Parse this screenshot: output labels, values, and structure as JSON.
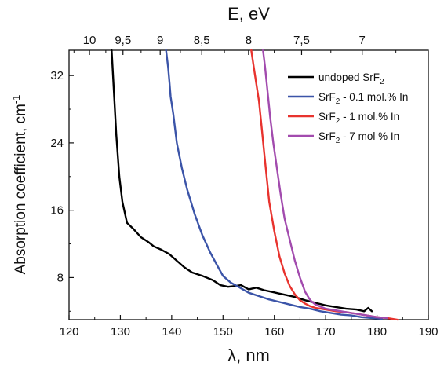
{
  "chart_data": {
    "type": "line",
    "xlabel": "λ, nm",
    "ylabel_main": "Absorption coefficient, cm",
    "ylabel_sup": "-1",
    "top_axis_label": "E, eV",
    "xlim": [
      120,
      190
    ],
    "ylim": [
      3,
      35
    ],
    "x_ticks": [
      120,
      130,
      140,
      150,
      160,
      170,
      180,
      190
    ],
    "y_ticks": [
      8,
      16,
      24,
      32
    ],
    "top_ticks": [
      {
        "label": "10",
        "ev": 10
      },
      {
        "label": "9,5",
        "ev": 9.5
      },
      {
        "label": "9",
        "ev": 9
      },
      {
        "label": "8,5",
        "ev": 8.5
      },
      {
        "label": "8",
        "ev": 8
      },
      {
        "label": "7,5",
        "ev": 7.5
      },
      {
        "label": "7",
        "ev": 7
      }
    ],
    "legend_position": "top-right",
    "series": [
      {
        "name": {
          "pre": "undoped SrF",
          "sub": "2",
          "post": ""
        },
        "color": "#000000",
        "x": [
          128.3,
          129.2,
          129.8,
          130.4,
          131.3,
          132.5,
          134,
          135.5,
          136.5,
          138,
          139.5,
          141,
          142.5,
          144,
          146,
          148,
          149.5,
          151,
          152.5,
          153.5,
          155,
          156.5,
          158,
          159.5,
          161,
          162.5,
          164,
          166,
          168,
          170,
          172,
          174,
          176,
          177.5,
          178.3,
          179
        ],
        "y": [
          35,
          25,
          20,
          17,
          14.5,
          13.8,
          12.8,
          12.2,
          11.7,
          11.3,
          10.8,
          10,
          9.2,
          8.6,
          8.2,
          7.7,
          7.1,
          6.9,
          7.0,
          7.1,
          6.6,
          6.8,
          6.5,
          6.3,
          6.1,
          5.9,
          5.7,
          5.3,
          5.0,
          4.7,
          4.5,
          4.3,
          4.2,
          4.0,
          4.4,
          4.0
        ]
      },
      {
        "name": {
          "pre": "SrF",
          "sub": "2",
          "post": " - 0.1 mol.% In"
        },
        "color": "#3b54a8",
        "x": [
          138.9,
          139.3,
          139.6,
          139.8,
          140.3,
          141,
          142,
          143,
          144.5,
          146,
          147.5,
          149,
          150,
          151.5,
          153,
          155,
          157,
          159,
          161,
          163,
          165,
          167,
          169,
          171,
          173,
          175,
          177,
          179,
          181
        ],
        "y": [
          35,
          33,
          31,
          29.5,
          27.5,
          24,
          21,
          18.5,
          15.5,
          13,
          11,
          9.3,
          8.2,
          7.4,
          6.9,
          6.2,
          5.8,
          5.4,
          5.1,
          4.8,
          4.5,
          4.3,
          4.0,
          3.8,
          3.6,
          3.5,
          3.3,
          3.2,
          3.1
        ]
      },
      {
        "name": {
          "pre": "SrF",
          "sub": "2",
          "post": " - 1 mol.% In"
        },
        "color": "#e8332e",
        "x": [
          155.5,
          156,
          156.5,
          157,
          157.5,
          158,
          158.5,
          159,
          160,
          161,
          162,
          163,
          164,
          165,
          166,
          167,
          168,
          170,
          172,
          174,
          176,
          178,
          180,
          182,
          184
        ],
        "y": [
          35,
          33,
          31,
          29,
          26,
          23,
          20,
          17,
          13.5,
          10.5,
          8.5,
          7.0,
          6.0,
          5.3,
          4.9,
          4.6,
          4.4,
          4.2,
          4.0,
          3.9,
          3.7,
          3.5,
          3.3,
          3.2,
          3.0
        ]
      },
      {
        "name": {
          "pre": "SrF",
          "sub": "2",
          "post": " - 7 mol % In"
        },
        "color": "#a24bae",
        "x": [
          157.8,
          158.2,
          158.7,
          159.2,
          159.8,
          160.5,
          161.2,
          162,
          163,
          164,
          165,
          166,
          167,
          168,
          170,
          172,
          174,
          176,
          178,
          180,
          182
        ],
        "y": [
          35,
          33,
          30,
          27,
          24,
          21,
          18,
          15,
          12.5,
          10,
          8,
          6.3,
          5.3,
          4.8,
          4.3,
          4.1,
          3.9,
          3.7,
          3.5,
          3.3,
          3.2
        ]
      }
    ]
  }
}
